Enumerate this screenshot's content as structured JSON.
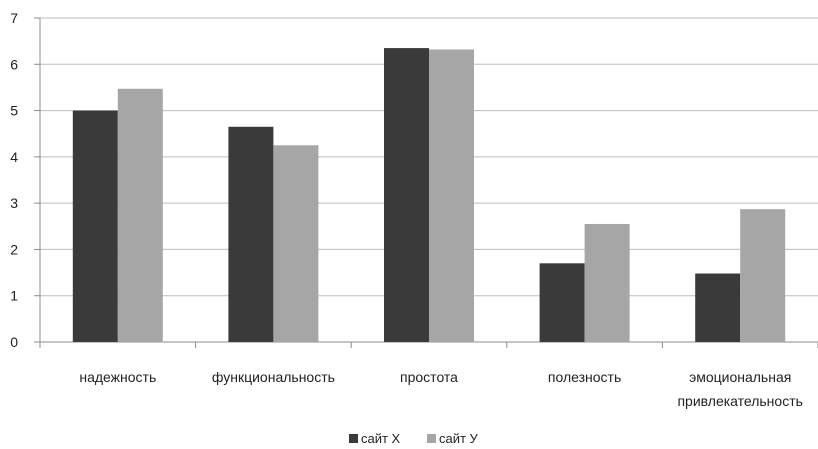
{
  "chart_data": {
    "type": "bar",
    "title": "",
    "xlabel": "",
    "ylabel": "",
    "ylim": [
      0,
      7
    ],
    "yticks": [
      0,
      1,
      2,
      3,
      4,
      5,
      6,
      7
    ],
    "grid": true,
    "legend_position": "bottom",
    "categories": [
      [
        "надежность"
      ],
      [
        "функциональность"
      ],
      [
        "простота"
      ],
      [
        "полезность"
      ],
      [
        "эмоциональная",
        "привлекательность"
      ]
    ],
    "series": [
      {
        "name": "сайт X",
        "color": "#3a3a3a",
        "values": [
          5.0,
          4.65,
          6.35,
          1.7,
          1.48
        ]
      },
      {
        "name": "сайт У",
        "color": "#a6a6a6",
        "values": [
          5.47,
          4.25,
          6.32,
          2.55,
          2.87
        ]
      }
    ]
  }
}
